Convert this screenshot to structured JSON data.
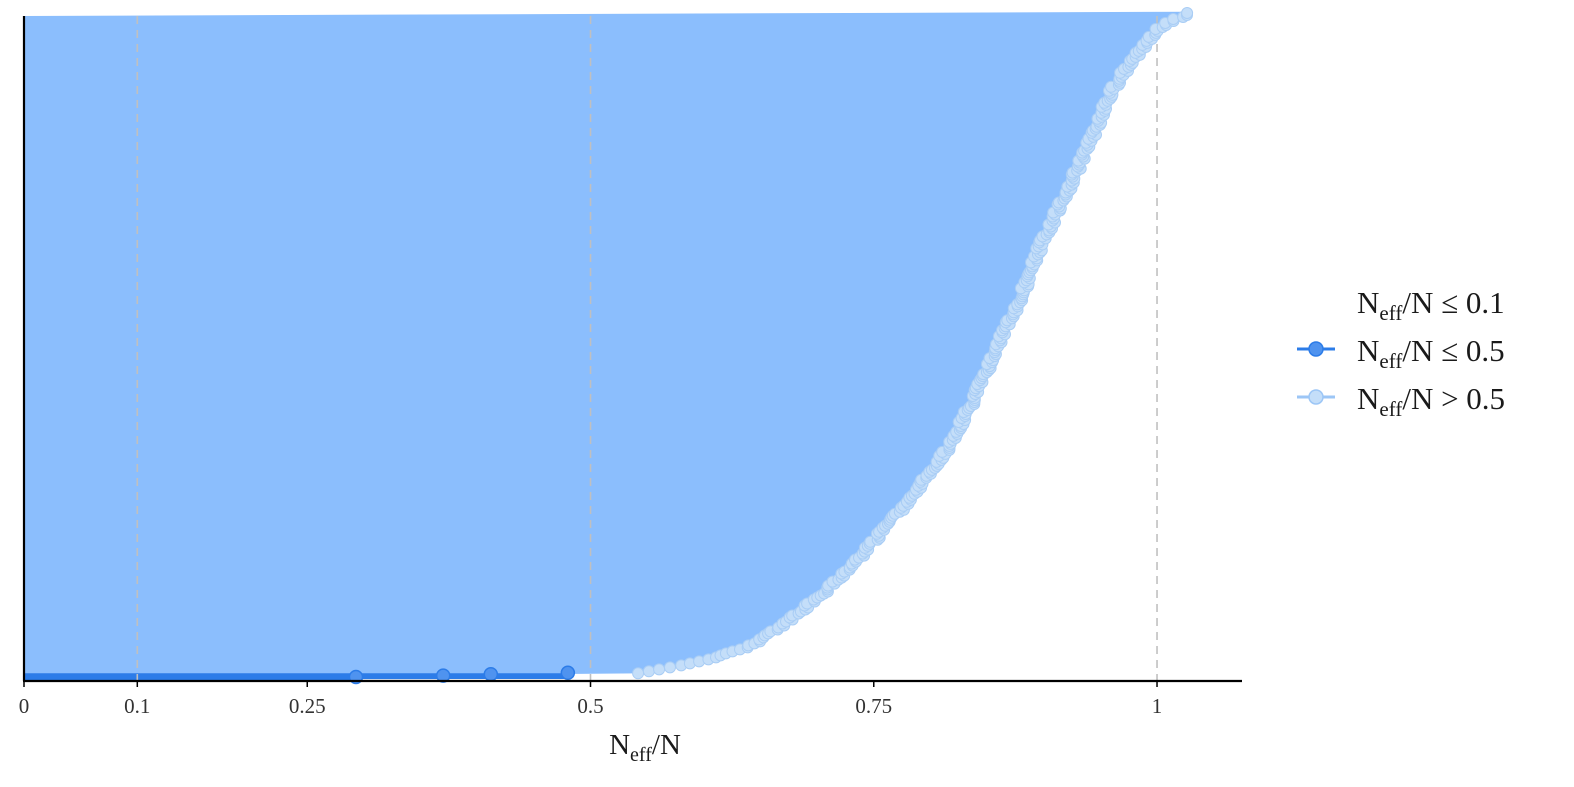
{
  "chart_data": {
    "type": "scatter",
    "title": "",
    "xlabel": {
      "base": "N",
      "sub": "eff",
      "suffix": "/N"
    },
    "ylabel": "",
    "xlim": [
      0,
      1.075
    ],
    "x_ticks": [
      {
        "value": 0,
        "label": "0"
      },
      {
        "value": 0.1,
        "label": "0.1"
      },
      {
        "value": 0.25,
        "label": "0.25"
      },
      {
        "value": 0.5,
        "label": "0.5"
      },
      {
        "value": 0.75,
        "label": "0.75"
      },
      {
        "value": 1,
        "label": "1"
      }
    ],
    "vlines": [
      0.1,
      0.5,
      1
    ],
    "grid": false,
    "legend_position": "right",
    "legend": [
      {
        "base": "N",
        "sub": "eff",
        "suffix": "/N ≤ 0.1",
        "color": "#d9534f",
        "shown": false
      },
      {
        "base": "N",
        "sub": "eff",
        "suffix": "/N ≤ 0.5",
        "color": "#2c7ce8",
        "shown": true
      },
      {
        "base": "N",
        "sub": "eff",
        "suffix": "/N > 0.5",
        "color": "#bcd9f7",
        "shown": true
      }
    ],
    "colors": {
      "low_series": "#2c7ce8",
      "low_series_fill": "#4f93ef",
      "high_series_fill": "#8bbefd",
      "high_series_point": "#c4def9",
      "vline": "#c0c0c0",
      "axis": "#000000"
    },
    "n_params": 1000,
    "low_points": [
      0.293,
      0.37,
      0.412,
      0.48
    ],
    "curve": [
      {
        "q": 0.0,
        "x": 0.545
      },
      {
        "q": 0.02,
        "x": 0.6
      },
      {
        "q": 0.04,
        "x": 0.64
      },
      {
        "q": 0.08,
        "x": 0.675
      },
      {
        "q": 0.12,
        "x": 0.705
      },
      {
        "q": 0.18,
        "x": 0.74
      },
      {
        "q": 0.26,
        "x": 0.78
      },
      {
        "q": 0.34,
        "x": 0.815
      },
      {
        "q": 0.42,
        "x": 0.84
      },
      {
        "q": 0.5,
        "x": 0.86
      },
      {
        "q": 0.57,
        "x": 0.88
      },
      {
        "q": 0.65,
        "x": 0.898
      },
      {
        "q": 0.72,
        "x": 0.918
      },
      {
        "q": 0.78,
        "x": 0.935
      },
      {
        "q": 0.84,
        "x": 0.95
      },
      {
        "q": 0.88,
        "x": 0.96
      },
      {
        "q": 0.92,
        "x": 0.975
      },
      {
        "q": 0.95,
        "x": 0.99
      },
      {
        "q": 0.975,
        "x": 1.0
      },
      {
        "q": 1.0,
        "x": 1.03
      }
    ]
  }
}
